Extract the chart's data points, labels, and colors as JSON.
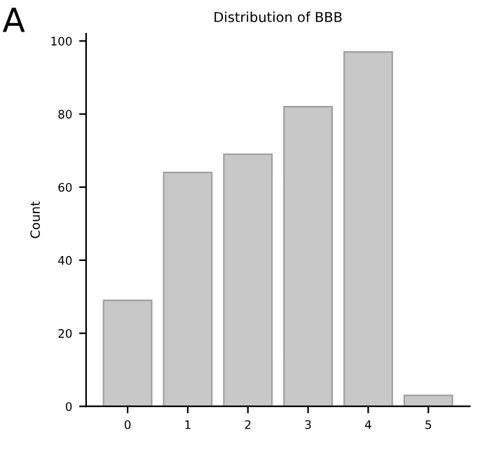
{
  "chart_data": {
    "type": "bar",
    "title": "Distribution of BBB",
    "ylabel": "Count",
    "annotations": [
      "A"
    ],
    "categories": [
      "0",
      "1",
      "2",
      "3",
      "4",
      "5"
    ],
    "values": [
      29,
      64,
      69,
      82,
      97,
      3
    ],
    "color": "#c8c8c8",
    "ylim": [
      0,
      102
    ],
    "yticks": [
      0,
      20,
      40,
      60,
      80,
      100
    ],
    "grid": false,
    "legend": false
  }
}
